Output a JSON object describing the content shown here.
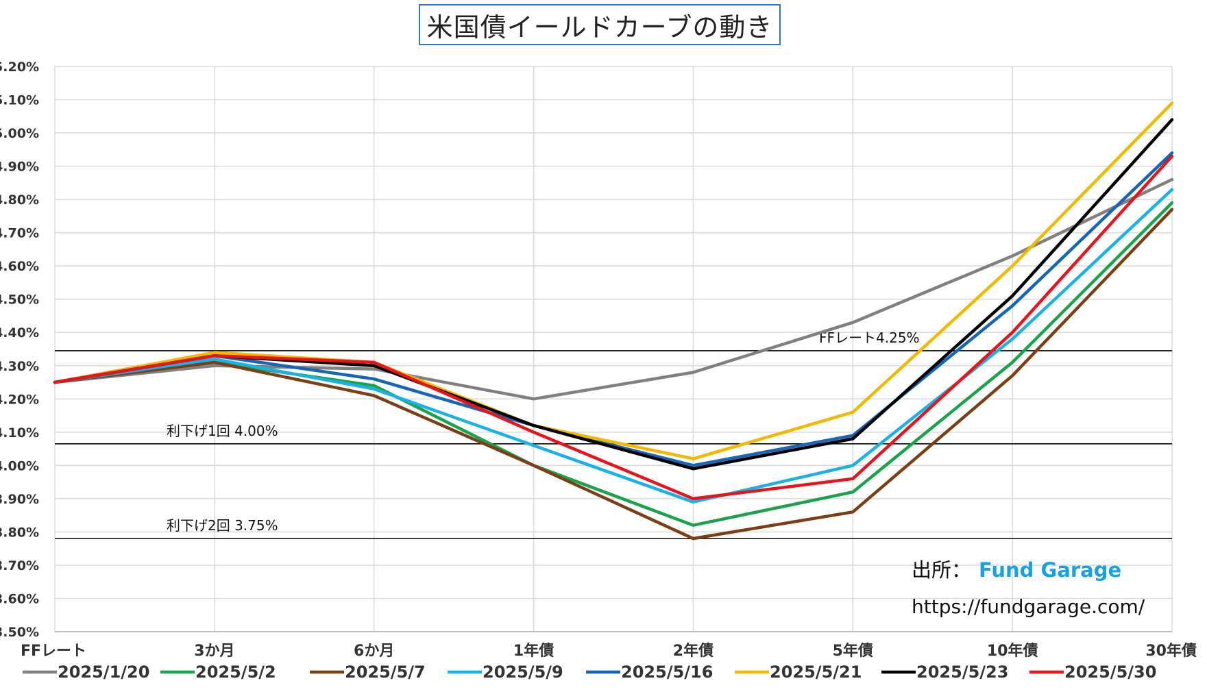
{
  "title": "米国債イールドカーブの動き",
  "source": {
    "label": "出所：",
    "brand": "Fund Garage",
    "url": "https://fundgarage.com/"
  },
  "chart_data": {
    "type": "line",
    "title": "米国債イールドカーブの動き",
    "categories": [
      "FFレート",
      "3か月",
      "6か月",
      "1年債",
      "2年債",
      "5年債",
      "10年債",
      "30年債"
    ],
    "ylim": [
      3.5,
      5.2
    ],
    "y_step": 0.1,
    "y_tick_format": "percent_2dp",
    "grid": true,
    "legend_position": "bottom",
    "series": [
      {
        "name": "2025/1/20",
        "color": "#808080",
        "values": [
          4.25,
          4.3,
          4.29,
          4.2,
          4.28,
          4.43,
          4.63,
          4.86
        ]
      },
      {
        "name": "2025/5/2",
        "color": "#1aa34a",
        "values": [
          4.25,
          4.31,
          4.24,
          4.0,
          3.82,
          3.92,
          4.31,
          4.79
        ]
      },
      {
        "name": "2025/5/7",
        "color": "#7b3f16",
        "values": [
          4.25,
          4.31,
          4.21,
          4.0,
          3.78,
          3.86,
          4.27,
          4.77
        ]
      },
      {
        "name": "2025/5/9",
        "color": "#1ab0e8",
        "values": [
          4.25,
          4.32,
          4.23,
          4.06,
          3.89,
          4.0,
          4.38,
          4.83
        ]
      },
      {
        "name": "2025/5/16",
        "color": "#1565b8",
        "values": [
          4.25,
          4.33,
          4.26,
          4.12,
          4.0,
          4.09,
          4.48,
          4.94
        ]
      },
      {
        "name": "2025/5/21",
        "color": "#f5b800",
        "values": [
          4.25,
          4.34,
          4.31,
          4.12,
          4.02,
          4.16,
          4.6,
          5.09
        ]
      },
      {
        "name": "2025/5/23",
        "color": "#000000",
        "values": [
          4.25,
          4.33,
          4.3,
          4.12,
          3.99,
          4.08,
          4.51,
          5.04
        ]
      },
      {
        "name": "2025/5/30",
        "color": "#e8141c",
        "values": [
          4.25,
          4.33,
          4.31,
          4.1,
          3.9,
          3.96,
          4.4,
          4.93
        ]
      }
    ],
    "reference_lines": [
      {
        "label": "FFレート4.25%",
        "value": 4.345
      },
      {
        "label": "利下げ1回 4.00%",
        "value": 4.065
      },
      {
        "label": "利下げ2回 3.75%",
        "value": 3.78
      }
    ]
  }
}
